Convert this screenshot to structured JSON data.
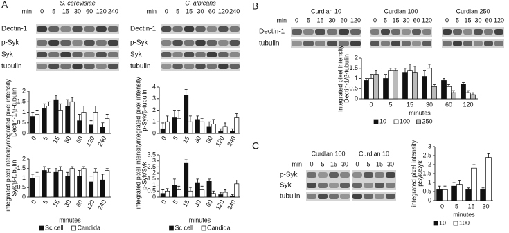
{
  "panels": [
    "A",
    "B",
    "C"
  ],
  "blots": [
    {
      "min_label": "min",
      "groups": [
        {
          "title": "S. cerevisiae",
          "times": [
            "0",
            "5",
            "15",
            "30",
            "60",
            "120",
            "240"
          ]
        }
      ],
      "rows": [
        "Dectin-1",
        "p-Syk",
        "Syk",
        "tubulin"
      ]
    },
    {
      "min_label": "min",
      "groups": [
        {
          "title": "C. albicans",
          "times": [
            "0",
            "5",
            "15",
            "30",
            "60",
            "120",
            "240"
          ]
        }
      ],
      "rows": [
        "Dectin-1",
        "p-Syk",
        "Syk",
        "tubulin"
      ]
    },
    {
      "min_label": "min",
      "groups": [
        {
          "title": "Curdlan 10",
          "times": [
            "0",
            "5",
            "15",
            "30",
            "60",
            "120"
          ]
        },
        {
          "title": "Curdlan 100",
          "times": [
            "0",
            "5",
            "15",
            "30",
            "60",
            "120"
          ]
        },
        {
          "title": "Curdlan 250",
          "times": [
            "0",
            "5",
            "15",
            "30",
            "60",
            "120"
          ]
        }
      ],
      "rows": [
        "Dectin-1",
        "tubulin"
      ]
    },
    {
      "min_label": "min",
      "groups": [
        {
          "title": "Curdlan 100",
          "times": [
            "0",
            "5",
            "15",
            "30"
          ]
        },
        {
          "title": "Curdlan 10",
          "times": [
            "0",
            "5",
            "15",
            "30"
          ]
        }
      ],
      "rows": [
        "p-Syk",
        "Syk",
        "tubulin"
      ]
    }
  ],
  "chart_data": [
    {
      "type": "bar",
      "ylabel": [
        "integrated pixel intensity",
        "Dectin-1/β-tubulin"
      ],
      "categories": [
        "0",
        "5",
        "15",
        "30",
        "60",
        "120",
        "240"
      ],
      "series": [
        {
          "color": "#111111",
          "values": [
            0.8,
            1.2,
            1.6,
            1.3,
            0.6,
            0.4,
            0.3
          ],
          "errors": [
            0.2,
            0.2,
            0.2,
            0.3,
            0.3,
            0.2,
            0.2
          ]
        },
        {
          "color": "#ffffff",
          "values": [
            0.9,
            1.3,
            1.1,
            1.5,
            1.0,
            1.0,
            0.7
          ],
          "errors": [
            0.2,
            0.2,
            0.3,
            0.2,
            0.3,
            0.3,
            0.2
          ]
        }
      ],
      "ylim": [
        0,
        2
      ],
      "yticks": [
        0,
        0.5,
        1,
        1.5,
        2
      ]
    },
    {
      "type": "bar",
      "ylabel": [
        "integrated pixel intensity",
        "p-Syk/β-tubulin"
      ],
      "categories": [
        "0",
        "5",
        "15",
        "30",
        "60",
        "120",
        "240"
      ],
      "series": [
        {
          "color": "#111111",
          "values": [
            0.4,
            1.4,
            3.3,
            1.2,
            0.6,
            0.2,
            0.2
          ],
          "errors": [
            0.5,
            0.6,
            0.5,
            0.3,
            0.4,
            0.2,
            0.2
          ]
        },
        {
          "color": "#ffffff",
          "values": [
            1.0,
            1.3,
            1.0,
            1.0,
            0.8,
            0.6,
            1.4
          ],
          "errors": [
            0.5,
            0.7,
            0.5,
            0.3,
            0.4,
            0.3,
            0.3
          ]
        }
      ],
      "ylim": [
        0,
        4
      ],
      "yticks": [
        0,
        1,
        2,
        3,
        4
      ]
    },
    {
      "type": "bar",
      "ylabel": [
        "integrated pixel intensity",
        "Syk/β-tubulin"
      ],
      "xlabel": "minutes",
      "categories": [
        "0",
        "5",
        "15",
        "30",
        "60",
        "120",
        "240"
      ],
      "series": [
        {
          "name": "Sc cell",
          "color": "#111111",
          "values": [
            1.0,
            1.4,
            1.3,
            1.1,
            1.1,
            0.8,
            0.9
          ],
          "errors": [
            0.2,
            0.2,
            0.2,
            0.2,
            0.3,
            0.3,
            0.3
          ]
        },
        {
          "name": "Candida",
          "color": "#ffffff",
          "values": [
            1.1,
            1.3,
            1.4,
            1.5,
            1.5,
            1.3,
            1.4
          ],
          "errors": [
            0.2,
            0.2,
            0.2,
            0.1,
            0.1,
            0.2,
            0.1
          ]
        }
      ],
      "ylim": [
        0,
        2
      ],
      "yticks": [
        0,
        0.5,
        1,
        1.5,
        2
      ],
      "legend": "bottom"
    },
    {
      "type": "bar",
      "ylabel": [
        "integrated pixel intensity",
        "p-Syk/Syk"
      ],
      "xlabel": "minutes",
      "categories": [
        "0",
        "5",
        "15",
        "30",
        "60",
        "120",
        "240"
      ],
      "series": [
        {
          "name": "Sc cell",
          "color": "#111111",
          "values": [
            0.3,
            1.0,
            2.8,
            1.2,
            1.3,
            0.2,
            0.1
          ],
          "errors": [
            0.3,
            0.5,
            0.3,
            0.3,
            0.2,
            0.2,
            0.1
          ]
        },
        {
          "name": "Candida",
          "color": "#ffffff",
          "values": [
            0.5,
            0.6,
            0.5,
            0.6,
            0.3,
            0.4,
            1.1
          ],
          "errors": [
            0.2,
            0.3,
            0.3,
            0.3,
            0.2,
            0.2,
            0.3
          ]
        }
      ],
      "ylim": [
        0,
        3.5
      ],
      "yticks": [
        0,
        0.5,
        1,
        1.5,
        2,
        2.5,
        3,
        3.5
      ],
      "legend": "bottom"
    },
    {
      "type": "bar",
      "ylabel": [
        "integrated pixel intensity",
        "Dectin-1/β-tubulin"
      ],
      "xlabel": "minutes",
      "categories": [
        "0",
        "5",
        "15",
        "30",
        "60",
        "120"
      ],
      "series": [
        {
          "name": "10",
          "color": "#111111",
          "values": [
            0.9,
            1.0,
            1.3,
            1.1,
            0.9,
            0.7
          ],
          "errors": [
            0.1,
            0.2,
            0.2,
            0.3,
            0.1,
            0.1
          ]
        },
        {
          "name": "100",
          "color": "#ffffff",
          "values": [
            1.0,
            1.4,
            1.4,
            1.5,
            0.6,
            0.3
          ],
          "errors": [
            0.2,
            0.1,
            0.3,
            0.2,
            0.1,
            0.1
          ]
        },
        {
          "name": "250",
          "color": "#bbbbbb",
          "values": [
            1.2,
            1.4,
            1.3,
            0.6,
            0.3,
            0.2
          ],
          "errors": [
            0.2,
            0.1,
            0.3,
            0.1,
            0.1,
            0.1
          ]
        }
      ],
      "ylim": [
        0,
        2
      ],
      "yticks": [
        0,
        0.5,
        1,
        1.5,
        2
      ],
      "legend": "bottom"
    },
    {
      "type": "bar",
      "ylabel": [
        "integrated pixel intensity",
        "pSyk/Syk"
      ],
      "xlabel": "minutes",
      "categories": [
        "0",
        "5",
        "15",
        "30"
      ],
      "series": [
        {
          "name": "10",
          "color": "#111111",
          "values": [
            0.6,
            0.8,
            0.6,
            0.6
          ],
          "errors": [
            0.2,
            0.2,
            0.1,
            0.1
          ]
        },
        {
          "name": "100",
          "color": "#ffffff",
          "values": [
            0.6,
            0.9,
            1.8,
            2.4
          ],
          "errors": [
            0.2,
            0.2,
            0.2,
            0.2
          ]
        }
      ],
      "ylim": [
        0,
        3
      ],
      "yticks": [
        0,
        0.5,
        1,
        1.5,
        2,
        2.5,
        3
      ],
      "legend": "bottom"
    }
  ]
}
